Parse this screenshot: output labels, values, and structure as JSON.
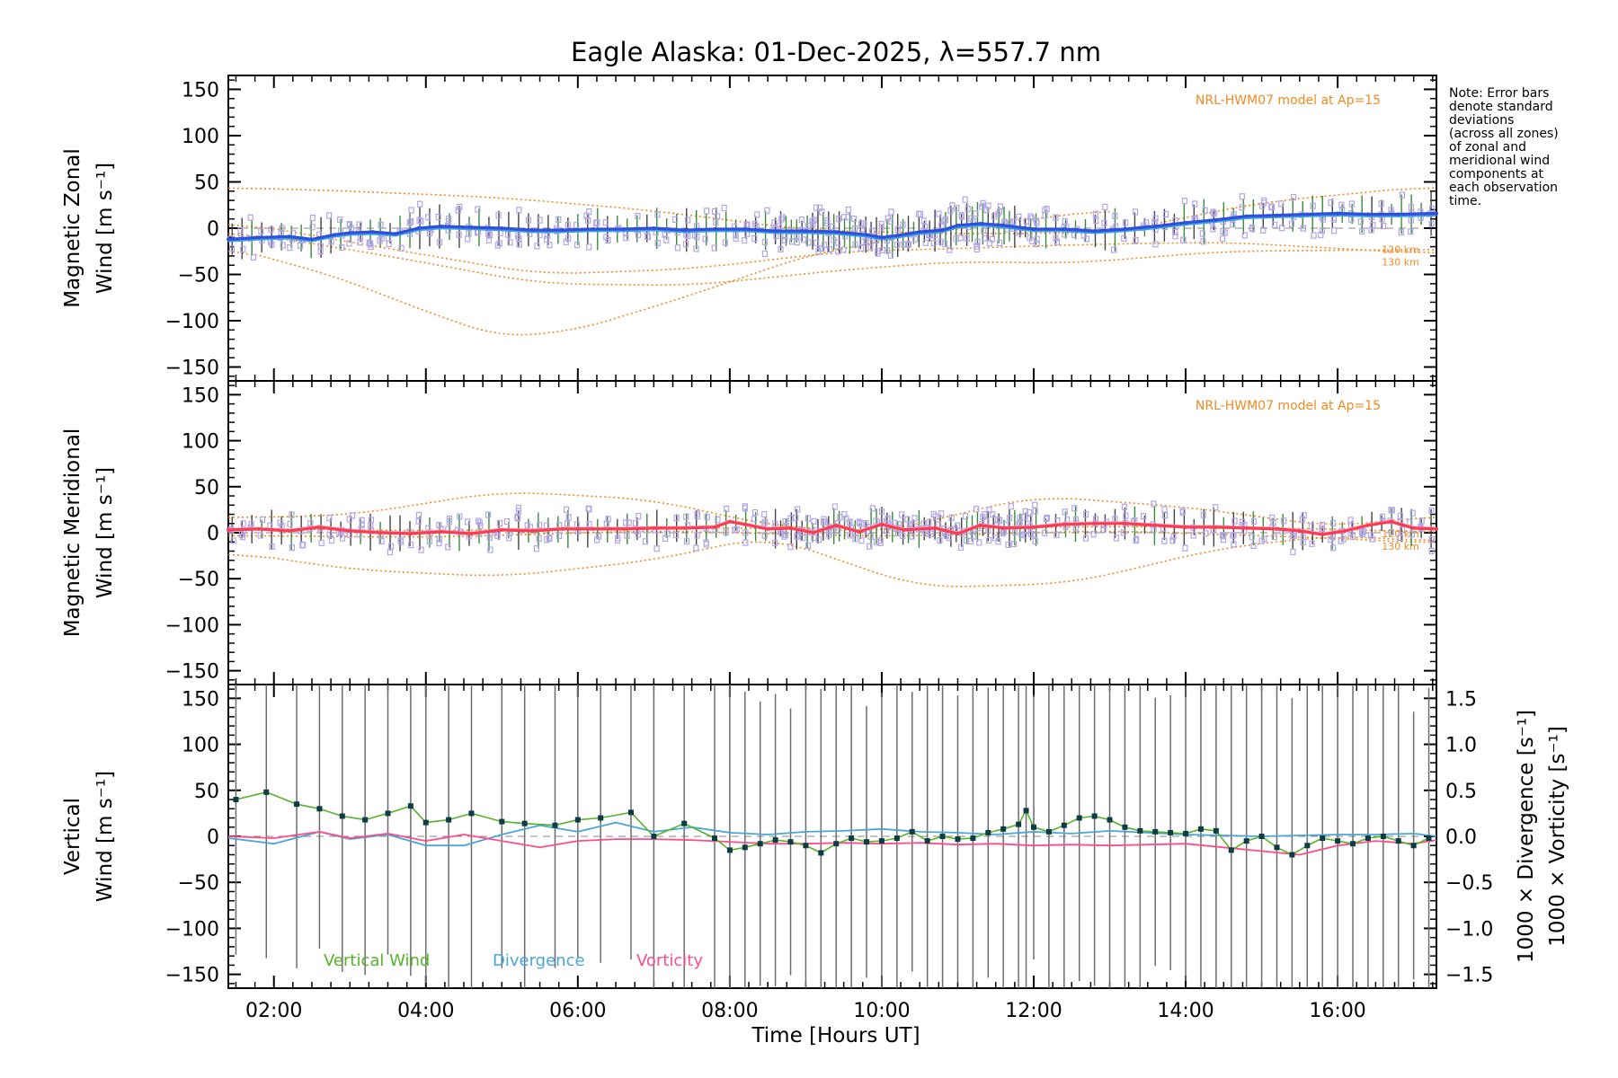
{
  "title": "Eagle Alaska: 01-Dec-2025, λ=557.7 nm",
  "note_lines": [
    "Note: Error bars",
    "denote standard",
    "deviations",
    "(across all zones)",
    "of zonal and",
    "meridional wind",
    "components at",
    "each observation",
    "time."
  ],
  "model_label": "NRL-HWM07 model at Ap=15",
  "model_km_labels": [
    "120 km",
    "130 km"
  ],
  "x_axis": {
    "label": "Time [Hours UT]",
    "range_hours": [
      1.4,
      17.3
    ],
    "ticks": [
      {
        "value": 2,
        "label": "02:00"
      },
      {
        "value": 4,
        "label": "04:00"
      },
      {
        "value": 6,
        "label": "06:00"
      },
      {
        "value": 8,
        "label": "08:00"
      },
      {
        "value": 10,
        "label": "10:00"
      },
      {
        "value": 12,
        "label": "12:00"
      },
      {
        "value": 14,
        "label": "14:00"
      },
      {
        "value": 16,
        "label": "16:00"
      }
    ]
  },
  "y_ticks": [
    "150",
    "100",
    "50",
    "0",
    "−50",
    "−100",
    "−150"
  ],
  "y_tick_values": [
    150,
    100,
    50,
    0,
    -50,
    -100,
    -150
  ],
  "right_ticks": [
    "1.5",
    "1.0",
    "0.5",
    "0.0",
    "−0.5",
    "−1.0",
    "−1.5"
  ],
  "right_tick_values": [
    1.5,
    1.0,
    0.5,
    0.0,
    -0.5,
    -1.0,
    -1.5
  ],
  "panels": {
    "zonal": {
      "ylabel_line1": "Magnetic Zonal",
      "ylabel_line2": "Wind [m s⁻¹]"
    },
    "meridional": {
      "ylabel_line1": "Magnetic Meridional",
      "ylabel_line2": "Wind [m s⁻¹]"
    },
    "vertical": {
      "ylabel_line1": "Vertical",
      "ylabel_line2": "Wind [m s⁻¹]",
      "right_label_div": "1000 × Divergence [s⁻¹]",
      "right_label_vort": "1000 × Vorticity [s⁻¹]",
      "legend": [
        "Vertical Wind",
        "Divergence",
        "Vorticity"
      ]
    }
  },
  "colors": {
    "zonal_line": "#2f4fe0",
    "zonal_light": "#3aa0e0",
    "meridional_line": "#ff3a55",
    "vertical": "#55b32a",
    "divergence": "#4aa6d6",
    "vorticity": "#ff4c8c",
    "model": "#f08a24",
    "scatter": "#b3a6e6",
    "errorbar": "#6c6c6c",
    "point": "#0e3c44"
  },
  "chart_data": [
    {
      "type": "line",
      "title": "Magnetic Zonal Wind",
      "ylabel": "Magnetic Zonal Wind [m s⁻¹]",
      "ylim": [
        -165,
        165
      ],
      "xlim": [
        1.4,
        17.3
      ],
      "series": [
        {
          "name": "Zonal wind",
          "x": [
            1.4,
            1.8,
            2.2,
            2.5,
            2.8,
            3.0,
            3.3,
            3.6,
            3.9,
            4.2,
            4.6,
            5.0,
            5.4,
            5.8,
            6.2,
            6.6,
            7.0,
            7.4,
            7.8,
            8.2,
            8.6,
            9.0,
            9.4,
            9.8,
            10.0,
            10.2,
            10.5,
            10.8,
            11.0,
            11.3,
            11.6,
            12.0,
            12.4,
            12.8,
            13.2,
            13.6,
            14.0,
            14.4,
            14.8,
            15.2,
            15.6,
            16.0,
            16.4,
            16.8,
            17.3
          ],
          "values": [
            -12,
            -10,
            -9,
            -12,
            -7,
            -5,
            -4,
            -6,
            0,
            2,
            1,
            0,
            -2,
            -2,
            -1,
            -1,
            0,
            -2,
            -1,
            -1,
            -3,
            -3,
            -4,
            -7,
            -10,
            -8,
            -4,
            -2,
            3,
            5,
            3,
            -1,
            -1,
            -3,
            -1,
            2,
            6,
            9,
            13,
            14,
            15,
            16,
            15,
            15,
            16
          ]
        }
      ],
      "model": {
        "name": "NRL-HWM07 model at Ap=15",
        "curves": [
          {
            "label": "",
            "x": [
              1.4,
              3.0,
              5.0,
              7.0,
              9.0,
              11.0,
              13.0,
              15.0,
              17.3
            ],
            "values": [
              44,
              40,
              33,
              19,
              -2,
              -6,
              -5,
              28,
              46
            ]
          },
          {
            "label": "",
            "x": [
              1.4,
              2.8,
              4.2,
              5.0,
              6.0,
              7.5,
              9.0,
              10.5,
              12.0,
              13.0
            ],
            "values": [
              -20,
              -52,
              -96,
              -118,
              -110,
              -72,
              -30,
              -6,
              10,
              20
            ]
          },
          {
            "label": "120 km",
            "x": [
              1.4,
              3.5,
              5.5,
              7.5,
              9.5,
              11.0,
              12.5,
              14.5,
              17.3
            ],
            "values": [
              -2,
              -30,
              -60,
              -62,
              -45,
              -36,
              -38,
              -25,
              -23
            ]
          },
          {
            "label": "130 km",
            "x": [
              1.4,
              3.5,
              5.5,
              7.5,
              9.5,
              11.0,
              12.5,
              14.5,
              17.3
            ],
            "values": [
              8,
              -22,
              -50,
              -44,
              -25,
              -22,
              -18,
              -15,
              -28
            ]
          }
        ]
      }
    },
    {
      "type": "line",
      "title": "Magnetic Meridional Wind",
      "ylabel": "Magnetic Meridional Wind [m s⁻¹]",
      "ylim": [
        -165,
        165
      ],
      "xlim": [
        1.4,
        17.3
      ],
      "series": [
        {
          "name": "Meridional wind",
          "x": [
            1.4,
            1.8,
            2.2,
            2.6,
            3.0,
            3.4,
            3.8,
            4.2,
            4.6,
            5.0,
            5.4,
            5.8,
            6.2,
            6.6,
            7.0,
            7.4,
            7.8,
            8.0,
            8.2,
            8.5,
            8.8,
            9.1,
            9.4,
            9.7,
            10.0,
            10.3,
            10.7,
            11.0,
            11.3,
            11.6,
            12.0,
            12.4,
            12.8,
            13.2,
            13.6,
            14.0,
            14.4,
            14.8,
            15.2,
            15.5,
            15.8,
            16.1,
            16.4,
            16.7,
            17.0,
            17.3
          ],
          "values": [
            3,
            4,
            2,
            6,
            2,
            0,
            -1,
            1,
            -1,
            3,
            2,
            4,
            4,
            4,
            5,
            5,
            6,
            12,
            9,
            4,
            5,
            0,
            8,
            1,
            9,
            3,
            5,
            -1,
            8,
            5,
            6,
            9,
            10,
            10,
            8,
            6,
            6,
            5,
            4,
            2,
            -2,
            2,
            8,
            12,
            5,
            4
          ]
        }
      ],
      "model": {
        "name": "NRL-HWM07 model at Ap=15",
        "curves": [
          {
            "label": "",
            "x": [
              1.4,
              3.0,
              5.0,
              7.0,
              8.5,
              10.0,
              12.0,
              14.0,
              16.0,
              17.3
            ],
            "values": [
              16,
              19,
              45,
              36,
              8,
              0,
              40,
              28,
              6,
              20
            ]
          },
          {
            "label": "",
            "x": [
              1.4,
              3.0,
              5.0,
              7.0,
              8.5,
              10.5,
              12.5,
              14.5,
              16.0,
              17.3
            ],
            "values": [
              -20,
              -40,
              -48,
              -30,
              -3,
              -60,
              -55,
              -16,
              -3,
              -10
            ]
          },
          {
            "label": "120 km",
            "x": [
              1.4,
              4.0,
              7.0,
              10.0,
              13.0,
              16.0,
              17.3
            ],
            "values": [
              5,
              2,
              6,
              3,
              7,
              4,
              0
            ]
          },
          {
            "label": "130 km",
            "x": [
              1.4,
              4.0,
              7.0,
              10.0,
              13.0,
              16.0,
              17.3
            ],
            "values": [
              -3,
              -5,
              2,
              -4,
              2,
              -6,
              -12
            ]
          }
        ]
      }
    },
    {
      "type": "line",
      "title": "Vertical Wind / Divergence / Vorticity",
      "ylabel": "Vertical Wind [m s⁻¹]",
      "ylim": [
        -165,
        165
      ],
      "y2label": "1000 × Divergence / Vorticity [s⁻¹]",
      "y2lim": [
        -1.5,
        1.5
      ],
      "xlim": [
        1.4,
        17.3
      ],
      "series": [
        {
          "name": "Vertical Wind",
          "x": [
            1.5,
            1.9,
            2.3,
            2.6,
            2.9,
            3.2,
            3.5,
            3.8,
            4.0,
            4.3,
            4.6,
            5.0,
            5.3,
            5.7,
            6.0,
            6.3,
            6.7,
            7.0,
            7.4,
            7.8,
            8.0,
            8.2,
            8.4,
            8.6,
            8.8,
            9.0,
            9.2,
            9.4,
            9.6,
            9.8,
            10.0,
            10.2,
            10.4,
            10.6,
            10.8,
            11.0,
            11.2,
            11.4,
            11.6,
            11.8,
            11.9,
            12.0,
            12.2,
            12.4,
            12.6,
            12.8,
            13.0,
            13.2,
            13.4,
            13.6,
            13.8,
            14.0,
            14.2,
            14.4,
            14.6,
            14.8,
            15.0,
            15.2,
            15.4,
            15.6,
            15.8,
            16.0,
            16.2,
            16.4,
            16.6,
            16.8,
            17.0,
            17.2
          ],
          "values": [
            40,
            48,
            35,
            30,
            22,
            18,
            25,
            33,
            15,
            18,
            25,
            16,
            14,
            12,
            18,
            20,
            26,
            0,
            14,
            -2,
            -15,
            -12,
            -8,
            -4,
            -6,
            -10,
            -18,
            -8,
            -2,
            -6,
            -5,
            -2,
            5,
            -5,
            0,
            -3,
            -2,
            4,
            8,
            13,
            28,
            10,
            5,
            12,
            20,
            22,
            18,
            10,
            6,
            5,
            4,
            3,
            8,
            6,
            -15,
            -5,
            0,
            -12,
            -20,
            -10,
            -2,
            -5,
            -8,
            -2,
            0,
            -5,
            -10,
            -2
          ],
          "errorbars": "±~180 m/s"
        },
        {
          "name": "Divergence",
          "x": [
            1.4,
            2.0,
            2.6,
            3.0,
            3.5,
            4.0,
            4.5,
            5.0,
            5.5,
            6.0,
            6.5,
            7.0,
            7.5,
            8.0,
            8.5,
            9.0,
            9.5,
            10.0,
            10.5,
            11.0,
            11.5,
            12.0,
            12.5,
            13.0,
            13.5,
            14.0,
            14.5,
            15.0,
            15.5,
            16.0,
            16.5,
            17.0,
            17.3
          ],
          "values": [
            -0.02,
            -0.08,
            0.05,
            -0.03,
            0.02,
            -0.1,
            -0.1,
            0.02,
            0.12,
            0.05,
            0.15,
            0.05,
            0.1,
            0.04,
            0.02,
            0.05,
            0.06,
            0.08,
            0.05,
            0.04,
            0.02,
            0.05,
            0.03,
            0.06,
            0.04,
            0.02,
            0.01,
            0.0,
            0.01,
            0.02,
            0.02,
            0.03,
            0.0
          ]
        },
        {
          "name": "Vorticity",
          "x": [
            1.4,
            2.0,
            2.6,
            3.0,
            3.5,
            4.0,
            4.5,
            5.0,
            5.5,
            6.0,
            6.5,
            7.0,
            7.5,
            8.0,
            8.5,
            9.0,
            9.5,
            10.0,
            10.5,
            11.0,
            11.5,
            12.0,
            12.5,
            13.0,
            13.5,
            14.0,
            14.5,
            15.0,
            15.5,
            16.0,
            16.5,
            17.0,
            17.3
          ],
          "values": [
            0.0,
            -0.02,
            0.05,
            -0.02,
            0.03,
            -0.05,
            0.02,
            -0.05,
            -0.12,
            -0.05,
            -0.03,
            -0.03,
            -0.04,
            -0.06,
            -0.08,
            -0.08,
            -0.07,
            -0.08,
            -0.07,
            -0.09,
            -0.08,
            -0.1,
            -0.09,
            -0.1,
            -0.09,
            -0.08,
            -0.12,
            -0.16,
            -0.2,
            -0.1,
            -0.05,
            -0.08,
            -0.04
          ]
        }
      ]
    }
  ]
}
